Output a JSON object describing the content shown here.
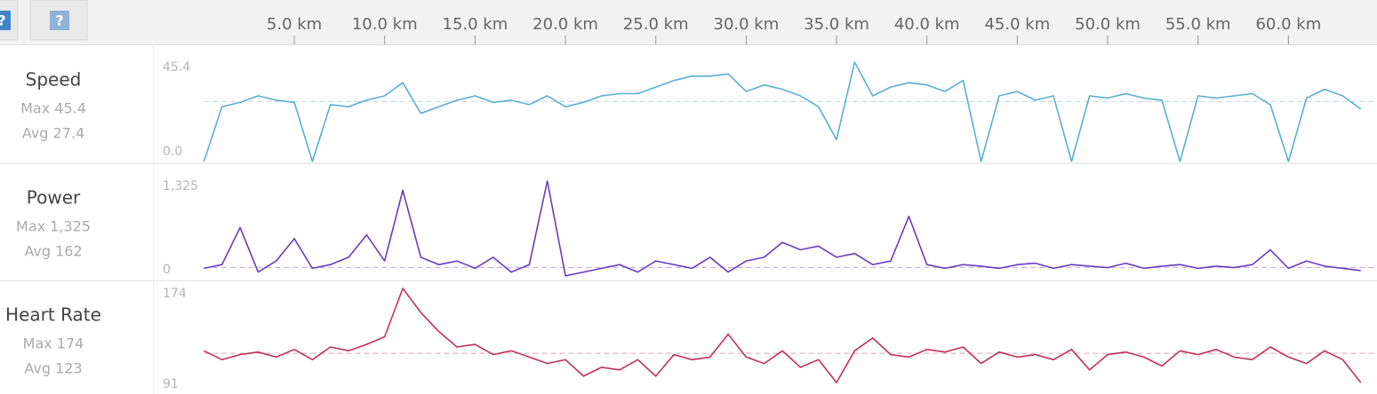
{
  "buttons": [
    "?",
    "?"
  ],
  "chart_data": {
    "type": "line",
    "x": [
      0,
      1,
      2,
      3,
      4,
      5,
      6,
      7,
      8,
      9,
      10,
      11,
      12,
      13,
      14,
      15,
      16,
      17,
      18,
      19,
      20,
      21,
      22,
      23,
      24,
      25,
      26,
      27,
      28,
      29,
      30,
      31,
      32,
      33,
      34,
      35,
      36,
      37,
      38,
      39,
      40,
      41,
      42,
      43,
      44,
      45,
      46,
      47,
      48,
      49,
      50,
      51,
      52,
      53,
      54,
      55,
      56,
      57,
      58,
      59,
      60,
      61,
      62,
      63,
      64
    ],
    "xlim": [
      0,
      64.9
    ],
    "xticks": [
      {
        "value": 5,
        "label": "5.0 km"
      },
      {
        "value": 10,
        "label": "10.0 km"
      },
      {
        "value": 15,
        "label": "15.0 km"
      },
      {
        "value": 20,
        "label": "20.0 km"
      },
      {
        "value": 25,
        "label": "25.0 km"
      },
      {
        "value": 30,
        "label": "30.0 km"
      },
      {
        "value": 35,
        "label": "35.0 km"
      },
      {
        "value": 40,
        "label": "40.0 km"
      },
      {
        "value": 45,
        "label": "45.0 km"
      },
      {
        "value": 50,
        "label": "50.0 km"
      },
      {
        "value": 55,
        "label": "55.0 km"
      },
      {
        "value": 60,
        "label": "60.0 km"
      }
    ],
    "panels": [
      {
        "name": "Speed",
        "max_label": "Max 45.4",
        "avg": {
          "value": 27.4,
          "label": "Avg 27.4"
        },
        "color": "#5aaed4",
        "ylim": [
          0,
          45.4
        ],
        "yticks": [
          {
            "value": 0,
            "label": "0.0"
          },
          45.4
        ],
        "values": [
          0,
          25,
          27,
          30,
          28,
          27,
          0,
          26,
          25,
          28,
          30,
          36,
          22,
          25,
          28,
          30,
          27,
          28,
          26,
          30,
          25,
          27,
          30,
          31,
          31,
          34,
          37,
          39,
          39,
          40,
          32,
          35,
          33,
          30,
          25,
          10,
          45.4,
          30,
          34,
          36,
          35,
          32,
          37,
          0,
          30,
          32,
          28,
          30,
          0,
          30,
          29,
          31,
          29,
          28,
          0,
          30,
          29,
          30,
          31,
          26,
          0,
          29,
          33,
          30,
          24
        ]
      },
      {
        "name": "Power",
        "max_label": "Max 1,325",
        "avg": {
          "value": 162,
          "label": "Avg 162"
        },
        "color": "#6a3cc0",
        "ylim": [
          0,
          1325
        ],
        "yticks": [
          0,
          {
            "value": 1325,
            "label": "1,325"
          }
        ],
        "values": [
          150,
          200,
          700,
          100,
          250,
          550,
          150,
          200,
          300,
          600,
          250,
          1200,
          300,
          200,
          250,
          150,
          300,
          100,
          200,
          1325,
          50,
          100,
          150,
          200,
          100,
          250,
          200,
          150,
          300,
          100,
          250,
          300,
          500,
          400,
          450,
          300,
          350,
          200,
          250,
          850,
          200,
          150,
          200,
          180,
          150,
          200,
          220,
          150,
          200,
          180,
          160,
          220,
          150,
          180,
          200,
          150,
          180,
          160,
          200,
          400,
          150,
          250,
          180,
          150,
          120
        ]
      },
      {
        "name": "Heart Rate",
        "max_label": "Max 174",
        "avg": {
          "value": 123,
          "label": "Avg 123"
        },
        "color": "#c2305a",
        "ylim": [
          91,
          174
        ],
        "yticks": [
          91,
          174
        ],
        "values": [
          125,
          118,
          122,
          124,
          120,
          126,
          118,
          128,
          125,
          130,
          136,
          174,
          155,
          140,
          128,
          130,
          122,
          125,
          120,
          115,
          118,
          105,
          112,
          110,
          118,
          105,
          122,
          118,
          120,
          138,
          120,
          115,
          125,
          112,
          118,
          100,
          125,
          135,
          122,
          120,
          126,
          124,
          128,
          115,
          124,
          120,
          122,
          118,
          126,
          110,
          122,
          124,
          120,
          113,
          125,
          122,
          126,
          120,
          118,
          128,
          120,
          115,
          125,
          118,
          100
        ]
      }
    ]
  }
}
